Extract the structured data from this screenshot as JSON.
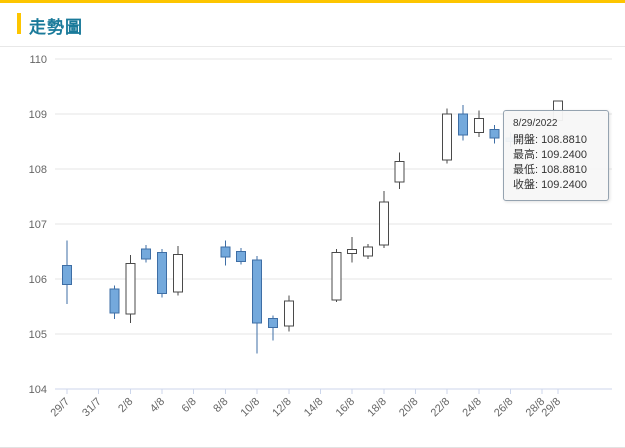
{
  "page": {
    "title": "走勢圖",
    "accent_color": "#fdc500",
    "title_color": "#1a7a9a"
  },
  "tooltip": {
    "date": "8/29/2022",
    "rows": [
      {
        "label": "開盤:",
        "value": "108.8810"
      },
      {
        "label": "最高:",
        "value": "109.2400"
      },
      {
        "label": "最低:",
        "value": "108.8810"
      },
      {
        "label": "收盤:",
        "value": "109.2400"
      }
    ]
  },
  "chart_data": {
    "type": "candlestick",
    "title": "走勢圖",
    "xlabel": "",
    "ylabel": "",
    "ylim": [
      104,
      110
    ],
    "grid": true,
    "legend": false,
    "y_ticks": [
      104,
      105,
      106,
      107,
      108,
      109,
      110
    ],
    "x_ticks": [
      {
        "day": 0,
        "label": "29/7"
      },
      {
        "day": 2,
        "label": "31/7"
      },
      {
        "day": 4,
        "label": "2/8"
      },
      {
        "day": 6,
        "label": "4/8"
      },
      {
        "day": 8,
        "label": "6/8"
      },
      {
        "day": 10,
        "label": "8/8"
      },
      {
        "day": 12,
        "label": "10/8"
      },
      {
        "day": 14,
        "label": "12/8"
      },
      {
        "day": 16,
        "label": "14/8"
      },
      {
        "day": 18,
        "label": "16/8"
      },
      {
        "day": 20,
        "label": "18/8"
      },
      {
        "day": 22,
        "label": "20/8"
      },
      {
        "day": 24,
        "label": "22/8"
      },
      {
        "day": 26,
        "label": "24/8"
      },
      {
        "day": 28,
        "label": "26/8"
      },
      {
        "day": 30,
        "label": "28/8"
      },
      {
        "day": 31,
        "label": "29/8"
      }
    ],
    "colors": {
      "up_fill": "#ffffff",
      "up_stroke": "#4a4a4a",
      "down_fill": "#74a9dc",
      "down_stroke": "#3e6ea5",
      "grid": "#e6e6e6",
      "axis_line": "#ccd6eb",
      "axis_label": "#666666",
      "tooltip_border": "#95a3b0",
      "tooltip_bg": "rgba(247,247,247,0.95)"
    },
    "candles": [
      {
        "date": "29/7",
        "day": 0,
        "open": 106.25,
        "high": 106.7,
        "low": 105.55,
        "close": 105.9
      },
      {
        "date": "1/8",
        "day": 3,
        "open": 105.82,
        "high": 105.88,
        "low": 105.27,
        "close": 105.38
      },
      {
        "date": "2/8",
        "day": 4,
        "open": 105.36,
        "high": 106.44,
        "low": 105.2,
        "close": 106.28
      },
      {
        "date": "3/8",
        "day": 5,
        "open": 106.55,
        "high": 106.62,
        "low": 106.3,
        "close": 106.36
      },
      {
        "date": "4/8",
        "day": 6,
        "open": 106.48,
        "high": 106.55,
        "low": 105.66,
        "close": 105.74
      },
      {
        "date": "5/8",
        "day": 7,
        "open": 105.76,
        "high": 106.6,
        "low": 105.7,
        "close": 106.45
      },
      {
        "date": "8/8",
        "day": 10,
        "open": 106.58,
        "high": 106.7,
        "low": 106.25,
        "close": 106.4
      },
      {
        "date": "9/8",
        "day": 11,
        "open": 106.5,
        "high": 106.56,
        "low": 106.26,
        "close": 106.32
      },
      {
        "date": "10/8",
        "day": 12,
        "open": 106.35,
        "high": 106.42,
        "low": 104.65,
        "close": 105.2
      },
      {
        "date": "11/8",
        "day": 13,
        "open": 105.28,
        "high": 105.34,
        "low": 104.88,
        "close": 105.12
      },
      {
        "date": "12/8",
        "day": 14,
        "open": 105.15,
        "high": 105.7,
        "low": 105.05,
        "close": 105.6
      },
      {
        "date": "15/8",
        "day": 17,
        "open": 105.62,
        "high": 106.55,
        "low": 105.58,
        "close": 106.48
      },
      {
        "date": "16/8",
        "day": 18,
        "open": 106.46,
        "high": 106.76,
        "low": 106.3,
        "close": 106.54
      },
      {
        "date": "17/8",
        "day": 19,
        "open": 106.42,
        "high": 106.64,
        "low": 106.36,
        "close": 106.58
      },
      {
        "date": "18/8",
        "day": 20,
        "open": 106.62,
        "high": 107.6,
        "low": 106.56,
        "close": 107.4
      },
      {
        "date": "19/8",
        "day": 21,
        "open": 107.76,
        "high": 108.3,
        "low": 107.64,
        "close": 108.14
      },
      {
        "date": "22/8",
        "day": 24,
        "open": 108.16,
        "high": 109.1,
        "low": 108.1,
        "close": 109.0
      },
      {
        "date": "23/8",
        "day": 25,
        "open": 109.0,
        "high": 109.16,
        "low": 108.52,
        "close": 108.62
      },
      {
        "date": "24/8",
        "day": 26,
        "open": 108.66,
        "high": 109.06,
        "low": 108.58,
        "close": 108.92
      },
      {
        "date": "25/8",
        "day": 27,
        "open": 108.72,
        "high": 108.8,
        "low": 108.46,
        "close": 108.56
      },
      {
        "date": "26/8",
        "day": 28,
        "open": 108.56,
        "high": 108.66,
        "low": 108.4,
        "close": 108.5
      },
      {
        "date": "29/8",
        "day": 31,
        "open": 108.881,
        "high": 109.24,
        "low": 108.881,
        "close": 109.24
      }
    ]
  }
}
